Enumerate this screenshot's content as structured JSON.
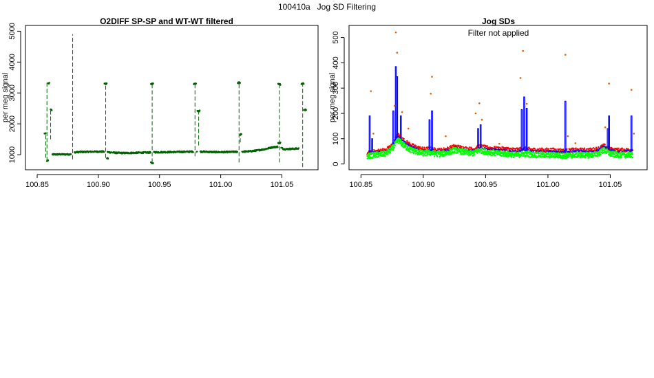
{
  "page": {
    "title": "100410a   Jog SD Filtering"
  },
  "colors": {
    "green_dark": "#006400",
    "green_bright": "#00ff00",
    "blue": "#0000ff",
    "red": "#ff0000",
    "orange": "#e06000",
    "axis": "#000000"
  },
  "chart_data": [
    {
      "type": "scatter",
      "title": "O2DIFF SP-SP and WT-WT filtered",
      "xlabel": "",
      "ylabel": "per meg signal",
      "xlim": [
        100.85,
        101.07
      ],
      "ylim": [
        700,
        5000
      ],
      "xticks": [
        100.85,
        100.9,
        100.95,
        101.0,
        101.05
      ],
      "xtick_labels": [
        "100.85",
        "100.90",
        "100.95",
        "101.00",
        "101.05"
      ],
      "yticks": [
        1000,
        2000,
        3000,
        4000,
        5000
      ],
      "ytick_labels": [
        "1000",
        "2000",
        "3000",
        "4000",
        "5000"
      ],
      "series": [
        {
          "color": "#006400",
          "baseline_points": [
            [
              100.861,
              1005
            ],
            [
              100.866,
              1010
            ],
            [
              100.872,
              1010
            ],
            [
              100.878,
              1015
            ],
            [
              100.881,
              1080
            ],
            [
              100.886,
              1090
            ],
            [
              100.892,
              1095
            ],
            [
              100.898,
              1100
            ],
            [
              100.903,
              1100
            ],
            [
              100.909,
              1080
            ],
            [
              100.915,
              1060
            ],
            [
              100.921,
              1055
            ],
            [
              100.927,
              1060
            ],
            [
              100.933,
              1065
            ],
            [
              100.939,
              1070
            ],
            [
              100.947,
              1080
            ],
            [
              100.953,
              1085
            ],
            [
              100.959,
              1085
            ],
            [
              100.965,
              1090
            ],
            [
              100.971,
              1095
            ],
            [
              100.977,
              1100
            ],
            [
              100.985,
              1100
            ],
            [
              100.991,
              1090
            ],
            [
              100.997,
              1085
            ],
            [
              101.003,
              1085
            ],
            [
              101.009,
              1090
            ],
            [
              101.018,
              1100
            ],
            [
              101.024,
              1110
            ],
            [
              101.03,
              1140
            ],
            [
              101.036,
              1180
            ],
            [
              101.042,
              1240
            ],
            [
              101.047,
              1260
            ],
            [
              101.052,
              1180
            ],
            [
              101.058,
              1190
            ],
            [
              101.064,
              1200
            ]
          ],
          "spikes": [
            {
              "x": 100.857,
              "bottom": 900,
              "top": 1700
            },
            {
              "x": 100.858,
              "bottom": 800,
              "top": 3350
            },
            {
              "x": 100.861,
              "bottom": 1500,
              "top": 2500
            },
            {
              "x": 100.879,
              "bottom": 850,
              "top": 4900
            },
            {
              "x": 100.906,
              "bottom": 900,
              "top": 3330
            },
            {
              "x": 100.944,
              "bottom": 750,
              "top": 3330
            },
            {
              "x": 100.979,
              "bottom": 950,
              "top": 3330
            },
            {
              "x": 100.982,
              "bottom": 1300,
              "top": 2450
            },
            {
              "x": 101.015,
              "bottom": 750,
              "top": 3380
            },
            {
              "x": 101.016,
              "bottom": 1400,
              "top": 1700
            },
            {
              "x": 101.048,
              "bottom": 750,
              "top": 3300
            },
            {
              "x": 101.067,
              "bottom": 600,
              "top": 3300
            },
            {
              "x": 101.069,
              "bottom": 2400,
              "top": 2500
            }
          ],
          "plateaus": [
            [
              100.856,
              100.857,
              1700
            ],
            [
              100.858,
              100.859,
              800
            ],
            [
              100.859,
              100.86,
              3320
            ],
            [
              100.861,
              100.862,
              2450
            ],
            [
              100.905,
              100.907,
              3300
            ],
            [
              100.907,
              100.908,
              880
            ],
            [
              100.943,
              100.945,
              3300
            ],
            [
              100.943,
              100.945,
              740
            ],
            [
              100.978,
              100.98,
              3300
            ],
            [
              100.981,
              100.983,
              2420
            ],
            [
              101.014,
              101.016,
              3330
            ],
            [
              101.016,
              101.017,
              1650
            ],
            [
              101.047,
              101.049,
              3280
            ],
            [
              101.047,
              101.049,
              1380
            ],
            [
              101.066,
              101.068,
              3300
            ],
            [
              101.068,
              101.07,
              2450
            ]
          ]
        }
      ]
    },
    {
      "type": "line",
      "title": "Jog SDs",
      "annotation": "Filter not applied",
      "xlabel": "",
      "ylabel": "per meg signal",
      "xlim": [
        100.85,
        101.07
      ],
      "ylim": [
        0,
        525
      ],
      "xticks": [
        100.85,
        100.9,
        100.95,
        101.0,
        101.05
      ],
      "xtick_labels": [
        "100.85",
        "100.90",
        "100.95",
        "101.00",
        "101.05"
      ],
      "yticks": [
        0,
        100,
        200,
        300,
        400,
        500
      ],
      "ytick_labels": [
        "0",
        "100",
        "200",
        "300",
        "400",
        "500"
      ],
      "baseline": {
        "x": [
          100.855,
          100.86,
          100.865,
          100.87,
          100.875,
          100.88,
          100.885,
          100.89,
          100.895,
          100.9,
          100.905,
          100.91,
          100.915,
          100.92,
          100.925,
          100.93,
          100.935,
          100.94,
          100.945,
          100.95,
          100.955,
          100.96,
          100.965,
          100.97,
          100.975,
          100.98,
          100.985,
          100.99,
          100.995,
          101.0,
          101.005,
          101.01,
          101.015,
          101.02,
          101.025,
          101.03,
          101.035,
          101.04,
          101.045,
          101.05,
          101.055,
          101.06,
          101.065,
          101.068
        ],
        "blue": [
          40,
          45,
          48,
          50,
          70,
          110,
          85,
          70,
          60,
          52,
          55,
          50,
          50,
          55,
          65,
          60,
          55,
          55,
          65,
          60,
          58,
          55,
          55,
          52,
          50,
          55,
          52,
          50,
          50,
          50,
          50,
          48,
          48,
          50,
          52,
          50,
          50,
          55,
          70,
          55,
          50,
          50,
          52,
          50
        ],
        "red": [
          42,
          48,
          52,
          55,
          75,
          115,
          90,
          75,
          65,
          58,
          60,
          55,
          55,
          60,
          70,
          65,
          60,
          58,
          70,
          65,
          62,
          60,
          60,
          58,
          55,
          60,
          58,
          55,
          55,
          55,
          55,
          52,
          52,
          55,
          55,
          55,
          55,
          60,
          72,
          58,
          55,
          55,
          55,
          55
        ],
        "green": [
          30,
          35,
          38,
          40,
          60,
          95,
          70,
          55,
          48,
          42,
          45,
          40,
          40,
          45,
          55,
          50,
          45,
          42,
          55,
          48,
          45,
          42,
          40,
          38,
          35,
          40,
          38,
          36,
          36,
          35,
          35,
          33,
          32,
          35,
          36,
          35,
          35,
          40,
          55,
          40,
          36,
          35,
          36,
          35
        ]
      },
      "blue_spikes": [
        {
          "x": 100.857,
          "top": 190
        },
        {
          "x": 100.859,
          "top": 100
        },
        {
          "x": 100.876,
          "top": 210
        },
        {
          "x": 100.878,
          "top": 385
        },
        {
          "x": 100.879,
          "top": 345
        },
        {
          "x": 100.882,
          "top": 190
        },
        {
          "x": 100.905,
          "top": 175
        },
        {
          "x": 100.907,
          "top": 210
        },
        {
          "x": 100.944,
          "top": 140
        },
        {
          "x": 100.946,
          "top": 155
        },
        {
          "x": 100.979,
          "top": 215
        },
        {
          "x": 100.981,
          "top": 265
        },
        {
          "x": 100.983,
          "top": 220
        },
        {
          "x": 101.014,
          "top": 248
        },
        {
          "x": 101.048,
          "top": 140
        },
        {
          "x": 101.049,
          "top": 190
        },
        {
          "x": 101.067,
          "top": 190
        }
      ],
      "orange_points": [
        [
          100.858,
          288
        ],
        [
          100.86,
          120
        ],
        [
          100.877,
          230
        ],
        [
          100.878,
          520
        ],
        [
          100.879,
          440
        ],
        [
          100.883,
          205
        ],
        [
          100.888,
          140
        ],
        [
          100.906,
          278
        ],
        [
          100.907,
          345
        ],
        [
          100.918,
          110
        ],
        [
          100.942,
          200
        ],
        [
          100.945,
          240
        ],
        [
          100.947,
          175
        ],
        [
          100.961,
          80
        ],
        [
          100.978,
          340
        ],
        [
          100.98,
          447
        ],
        [
          100.983,
          238
        ],
        [
          101.01,
          60
        ],
        [
          101.014,
          432
        ],
        [
          101.016,
          110
        ],
        [
          101.022,
          82
        ],
        [
          101.046,
          145
        ],
        [
          101.049,
          318
        ],
        [
          101.06,
          55
        ],
        [
          101.067,
          293
        ],
        [
          101.069,
          120
        ]
      ]
    }
  ]
}
